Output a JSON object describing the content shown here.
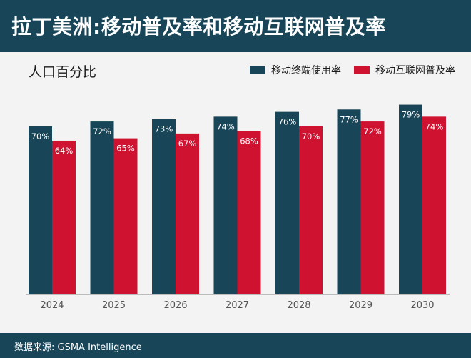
{
  "title": "拉丁美洲:移动普及率和移动互联网普及率",
  "unit_label": "人口百分比",
  "source": "数据来源: GSMA Intelligence",
  "colors": {
    "header_bg": "#184658",
    "series_mobile": "#184658",
    "series_internet": "#cf1230",
    "background": "#f3f3f3"
  },
  "chart_data": {
    "type": "bar",
    "categories": [
      "2024",
      "2025",
      "2026",
      "2027",
      "2028",
      "2029",
      "2030"
    ],
    "series": [
      {
        "name": "移动终端使用率",
        "values": [
          70,
          72,
          73,
          74,
          76,
          77,
          79
        ],
        "labels": [
          "70%",
          "72%",
          "73%",
          "74%",
          "76%",
          "77%",
          "79%"
        ]
      },
      {
        "name": "移动互联网普及率",
        "values": [
          64,
          65,
          67,
          68,
          70,
          72,
          74
        ],
        "labels": [
          "64%",
          "65%",
          "67%",
          "68%",
          "70%",
          "72%",
          "74%"
        ]
      }
    ],
    "legend_position": "top-right",
    "grid": false
  }
}
